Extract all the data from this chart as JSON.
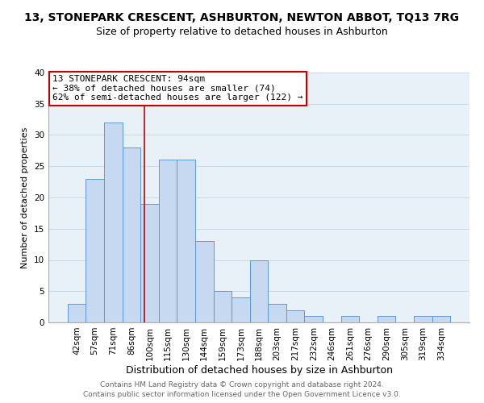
{
  "title": "13, STONEPARK CRESCENT, ASHBURTON, NEWTON ABBOT, TQ13 7RG",
  "subtitle": "Size of property relative to detached houses in Ashburton",
  "xlabel": "Distribution of detached houses by size in Ashburton",
  "ylabel": "Number of detached properties",
  "bar_labels": [
    "42sqm",
    "57sqm",
    "71sqm",
    "86sqm",
    "100sqm",
    "115sqm",
    "130sqm",
    "144sqm",
    "159sqm",
    "173sqm",
    "188sqm",
    "203sqm",
    "217sqm",
    "232sqm",
    "246sqm",
    "261sqm",
    "276sqm",
    "290sqm",
    "305sqm",
    "319sqm",
    "334sqm"
  ],
  "bar_values": [
    3,
    23,
    32,
    28,
    19,
    26,
    26,
    13,
    5,
    4,
    10,
    3,
    2,
    1,
    0,
    1,
    0,
    1,
    0,
    1,
    1
  ],
  "bar_color": "#c6d9f0",
  "bar_edge_color": "#5b9bd5",
  "background_color": "#ffffff",
  "plot_bg_color": "#e8f0f8",
  "grid_color": "#c8d8e8",
  "ylim": [
    0,
    40
  ],
  "yticks": [
    0,
    5,
    10,
    15,
    20,
    25,
    30,
    35,
    40
  ],
  "annotation_box_text": "13 STONEPARK CRESCENT: 94sqm\n← 38% of detached houses are smaller (74)\n62% of semi-detached houses are larger (122) →",
  "annotation_box_color": "#ffffff",
  "annotation_box_edge_color": "#c00000",
  "property_line_color": "#c00000",
  "property_line_x": 3.73,
  "footnote1": "Contains HM Land Registry data © Crown copyright and database right 2024.",
  "footnote2": "Contains public sector information licensed under the Open Government Licence v3.0.",
  "title_fontsize": 10,
  "subtitle_fontsize": 9,
  "xlabel_fontsize": 9,
  "ylabel_fontsize": 8,
  "tick_fontsize": 7.5,
  "annotation_fontsize": 8,
  "footnote_fontsize": 6.5
}
